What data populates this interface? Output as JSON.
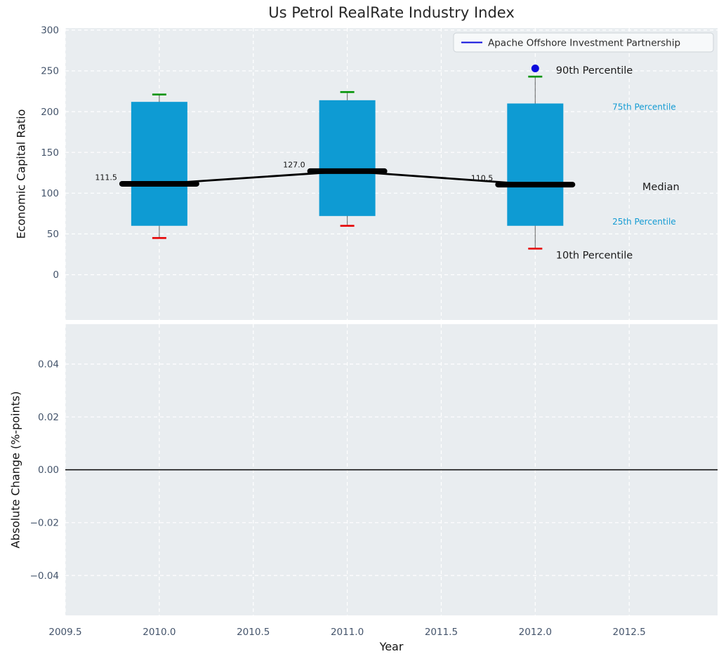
{
  "chart_data": {
    "type": "boxplot",
    "title": "Us Petrol RealRate Industry Index",
    "legend": {
      "label": "Apache Offshore Investment Partnership",
      "position": "upper right"
    },
    "x_axis": {
      "label": "Year",
      "tick_values": [
        2009.5,
        2010.0,
        2010.5,
        2011.0,
        2011.5,
        2012.0,
        2012.5
      ],
      "tick_labels": [
        "2009.5",
        "2010.0",
        "2010.5",
        "2011.0",
        "2011.5",
        "2012.0",
        "2012.5"
      ],
      "xlim": [
        2009.5,
        2012.97
      ]
    },
    "top_panel": {
      "ylabel": "Economic Capital Ratio",
      "ytick_values": [
        300,
        250,
        200,
        150,
        100,
        50,
        0
      ],
      "ytick_labels": [
        "300",
        "250",
        "200",
        "150",
        "100",
        "50",
        "0"
      ],
      "ylim": [
        -55.5,
        302.5
      ],
      "grid": true,
      "boxes": [
        {
          "year": 2010.0,
          "p10": 45,
          "p25": 60,
          "median": 111.5,
          "p75": 212,
          "p90": 221,
          "label": "111.5"
        },
        {
          "year": 2011.0,
          "p10": 60,
          "p25": 72,
          "median": 127.0,
          "p75": 214,
          "p90": 224,
          "label": "127.0"
        },
        {
          "year": 2012.0,
          "p10": 32,
          "p25": 60,
          "median": 110.5,
          "p75": 210,
          "p90": 243,
          "label": "110.5"
        }
      ],
      "dot_marker": {
        "x": 2012.0,
        "value": 253
      },
      "annotations": [
        {
          "id": "p90",
          "text": "90th Percentile",
          "x": 2012.11,
          "value": 251,
          "color": "#1a1a1a",
          "size": 14.5
        },
        {
          "id": "p75",
          "text": "75th Percentile",
          "x": 2012.41,
          "value": 206,
          "color": "#149bd3",
          "size": 12
        },
        {
          "id": "median",
          "text": "Median",
          "x": 2012.57,
          "value": 108,
          "color": "#1a1a1a",
          "size": 14.5
        },
        {
          "id": "p25",
          "text": "25th Percentile",
          "x": 2012.41,
          "value": 65,
          "color": "#149bd3",
          "size": 12
        },
        {
          "id": "p10",
          "text": "10th Percentile",
          "x": 2012.11,
          "value": 24,
          "color": "#1a1a1a",
          "size": 14.5
        }
      ]
    },
    "bottom_panel": {
      "ylabel": "Absolute Change (%-points)",
      "ytick_values": [
        0.04,
        0.02,
        0.0,
        -0.02,
        -0.04
      ],
      "ytick_labels": [
        "0.04",
        "0.02",
        "0.00",
        "−0.02",
        "−0.04"
      ],
      "ylim": [
        -0.0551,
        0.0551
      ],
      "zero_line": 0.0,
      "grid": true
    },
    "colors": {
      "figure_bg": "#ffffff",
      "axes_bg": "#e9edf0",
      "grid": "#ffffff",
      "box_fill": "#0e9bd3",
      "median_line": "#000000",
      "whisker": "rgba(0,0,0,0.5)",
      "cap_high": "#009405",
      "cap_low": "#e60000",
      "series_blue": "#0b0bdc",
      "tick_label": "#44546b",
      "title_text": "#262626",
      "axis_label": "#111111",
      "legend_bg": "#f7f9fa",
      "legend_border": "#cdd3d8"
    }
  }
}
